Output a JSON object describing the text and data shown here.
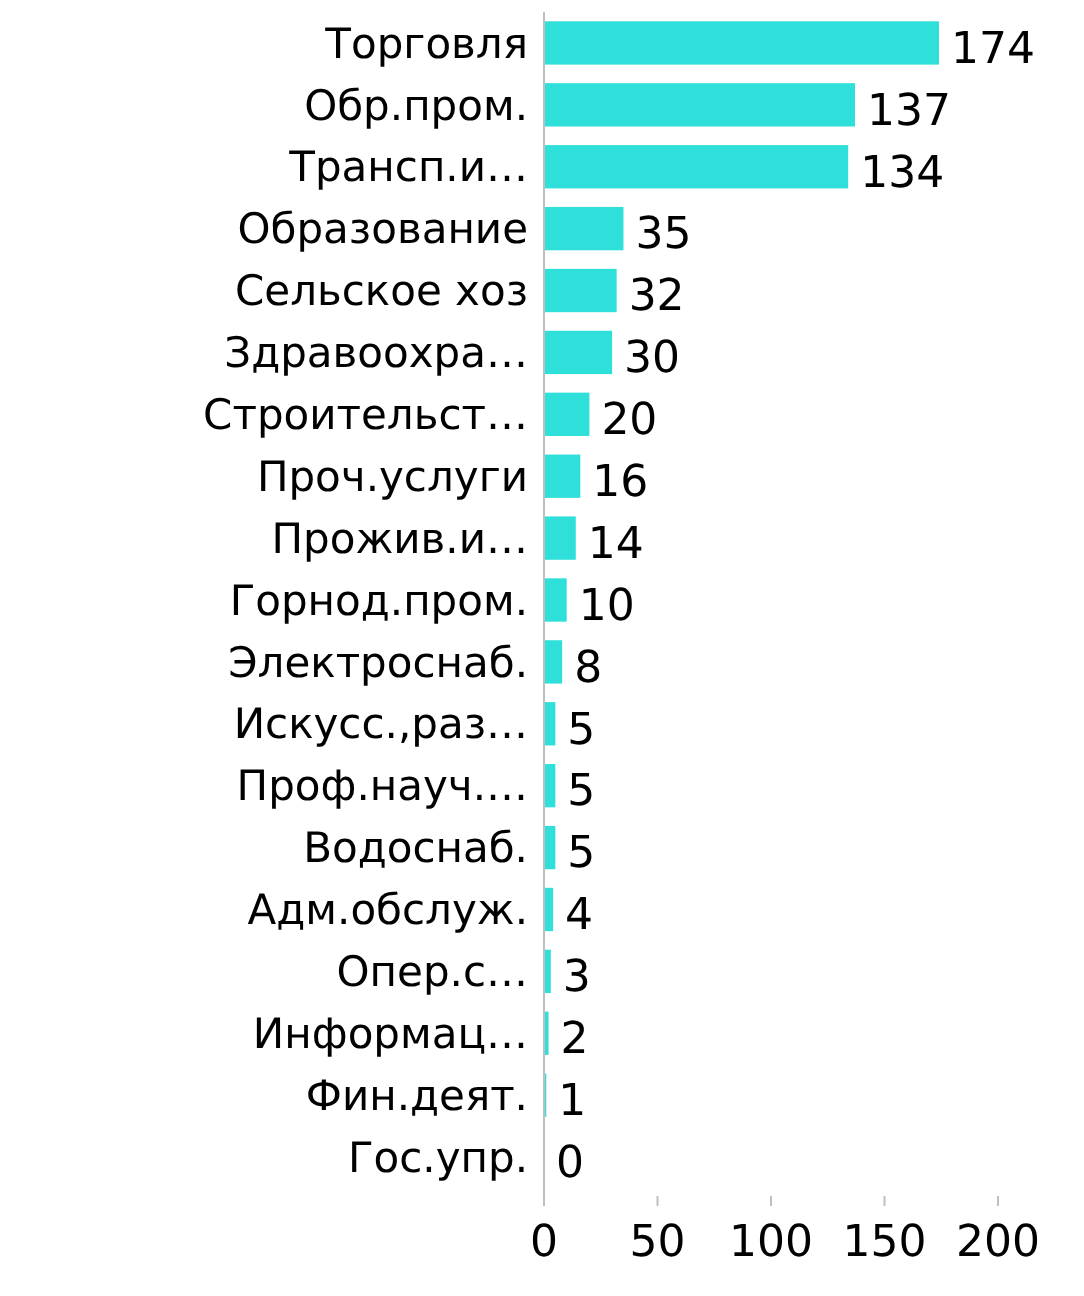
{
  "chart_data": {
    "type": "bar",
    "orientation": "horizontal",
    "categories": [
      "Торговля",
      "Обр.пром.",
      "Трансп.и…",
      "Образование",
      "Сельское хоз",
      "Здравоохра…",
      "Строительст…",
      "Проч.услуги",
      "Прожив.и…",
      "Горнод.пром.",
      "Электроснаб.",
      "Искусс.,раз…",
      "Проф.науч.…",
      "Водоснаб.",
      "Адм.обслуж.",
      "Опер.с…",
      "Информац…",
      "Фин.деят.",
      "Гос.упр."
    ],
    "values": [
      174,
      137,
      134,
      35,
      32,
      30,
      20,
      16,
      14,
      10,
      8,
      5,
      5,
      5,
      4,
      3,
      2,
      1,
      0
    ],
    "color": "#2ee0d9",
    "xlim": [
      0,
      200
    ],
    "xticks": [
      0,
      50,
      100,
      150,
      200
    ],
    "data_labels": true,
    "grid": false
  }
}
